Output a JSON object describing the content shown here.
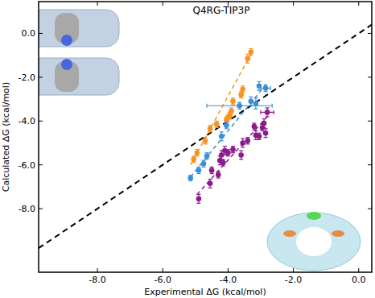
{
  "chart_data": {
    "type": "scatter",
    "title": "Q4RG-TIP3P",
    "x_label": "Experimental ΔG (kcal/mol)",
    "y_label": "Calculated ΔG (kcal/mol)",
    "xlim": [
      -9.8,
      0.4
    ],
    "ylim": [
      -10.9,
      1.45
    ],
    "xticks": [
      {
        "value": -8,
        "label": "-8.0"
      },
      {
        "value": -6,
        "label": "-6.0"
      },
      {
        "value": -4,
        "label": "-4.0"
      },
      {
        "value": -2,
        "label": "-2.0"
      },
      {
        "value": 0,
        "label": "0.0"
      }
    ],
    "yticks": [
      {
        "value": 0,
        "label": "0.0"
      },
      {
        "value": -2,
        "label": "-2.0"
      },
      {
        "value": -4,
        "label": "-4.0"
      },
      {
        "value": -6,
        "label": "-6.0"
      },
      {
        "value": -8,
        "label": "-8.0"
      }
    ],
    "grid": false,
    "series": [
      {
        "color": "#f7931e",
        "marker": "circle",
        "x": [
          -5.05,
          -4.95,
          -4.7,
          -4.55,
          -4.35,
          -4.05,
          -4.0,
          -3.95,
          -3.9,
          -3.85,
          -3.6,
          -3.55,
          -3.4,
          -3.3
        ],
        "values": [
          -5.75,
          -5.45,
          -4.9,
          -4.35,
          -4.15,
          -3.95,
          -3.85,
          -3.75,
          -3.55,
          -3.1,
          -2.8,
          -2.55,
          -1.15,
          -0.85
        ],
        "errors": [
          0.15,
          0.15,
          0.15,
          0.15,
          0.15,
          0.15,
          0.15,
          0.15,
          0.15,
          0.15,
          0.15,
          0.15,
          0.2,
          0.15
        ],
        "x_errors": [
          0,
          0,
          0,
          0,
          0,
          0,
          0,
          0,
          0,
          0,
          0,
          0,
          0,
          0
        ],
        "fit": {
          "x": [
            -5.15,
            -3.3
          ],
          "values": [
            -6.0,
            -0.95
          ]
        }
      },
      {
        "color": "#3a8fd6",
        "marker": "circle",
        "x": [
          -5.15,
          -4.9,
          -4.75,
          -4.65,
          -4.2,
          -4.05,
          -3.65,
          -3.3,
          -3.15,
          -3.05,
          -2.85
        ],
        "values": [
          -6.6,
          -6.25,
          -5.95,
          -5.6,
          -4.7,
          -4.2,
          -3.3,
          -3.1,
          -3.2,
          -2.4,
          -2.5
        ],
        "errors": [
          0.12,
          0.15,
          0.15,
          0.15,
          0.2,
          0.15,
          0.15,
          0.2,
          0.25,
          0.2,
          0.15
        ],
        "x_errors": [
          0,
          0,
          0,
          0,
          0,
          0,
          1.0,
          0,
          0,
          0,
          0.15
        ],
        "fit": {
          "x": [
            -5.15,
            -2.85
          ],
          "values": [
            -6.55,
            -2.35
          ]
        }
      },
      {
        "color": "#8b1a8b",
        "marker": "circle",
        "x": [
          -4.9,
          -4.55,
          -4.5,
          -4.3,
          -4.25,
          -4.2,
          -4.15,
          -4.1,
          -4.0,
          -3.85,
          -3.6,
          -3.55,
          -3.4,
          -3.2,
          -3.15,
          -3.05,
          -2.95,
          -2.9,
          -2.85,
          -2.8
        ],
        "values": [
          -7.55,
          -6.85,
          -6.25,
          -6.45,
          -5.8,
          -5.55,
          -5.9,
          -5.35,
          -5.45,
          -5.3,
          -5.55,
          -5.0,
          -4.9,
          -4.25,
          -4.65,
          -4.7,
          -4.3,
          -4.1,
          -4.55,
          -3.6
        ],
        "errors": [
          0.2,
          0.2,
          0.15,
          0.15,
          0.2,
          0.2,
          0.15,
          0.2,
          0.15,
          0.15,
          0.2,
          0.2,
          0.15,
          0.15,
          0.2,
          0.15,
          0.15,
          0.2,
          0.2,
          0.2
        ],
        "x_errors": [
          0,
          0,
          0,
          0,
          0,
          0,
          0,
          0,
          0,
          0,
          0,
          0,
          0,
          0,
          0,
          0,
          0,
          0,
          0,
          0.2
        ],
        "fit": {
          "x": [
            -4.95,
            -2.8
          ],
          "values": [
            -7.35,
            -3.8
          ]
        }
      }
    ]
  }
}
